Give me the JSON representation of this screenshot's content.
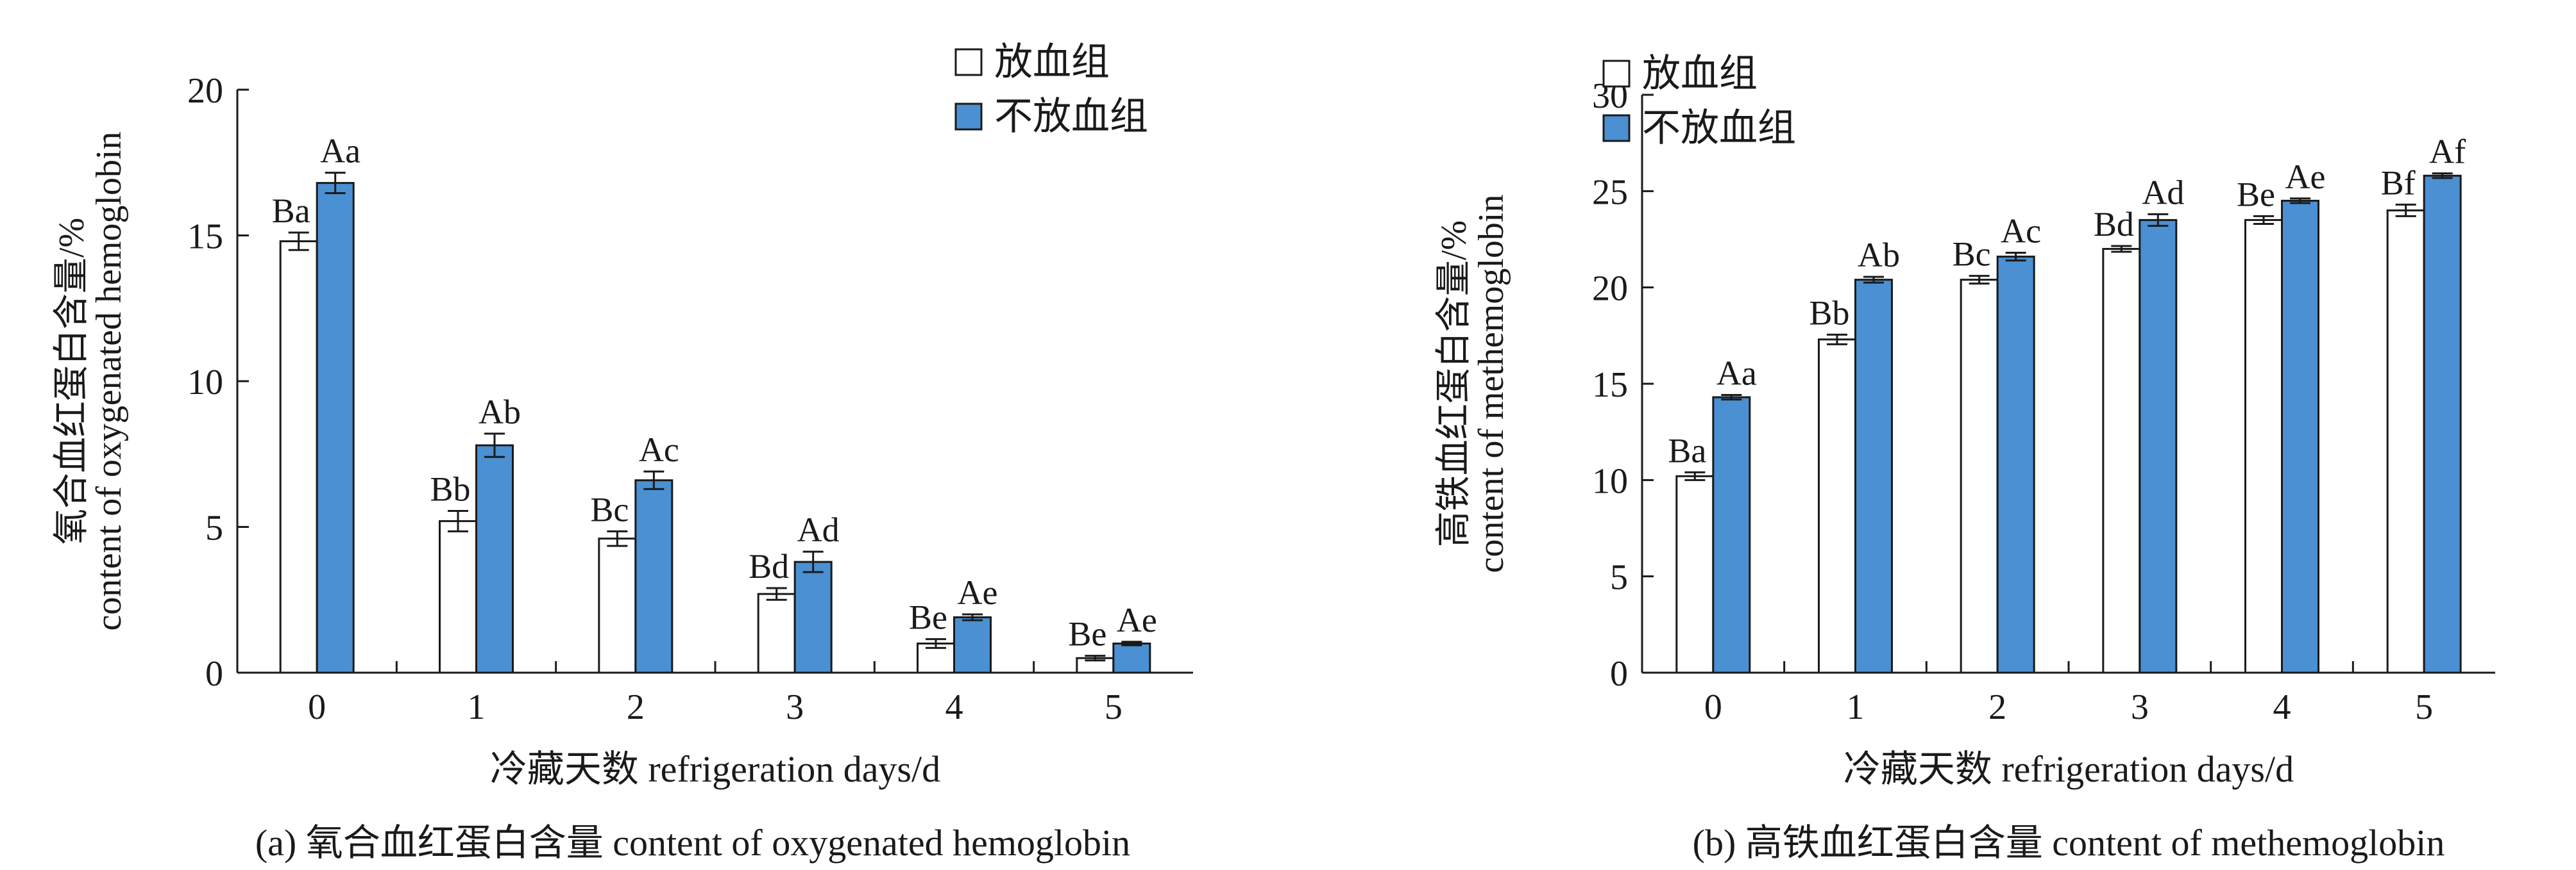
{
  "colors": {
    "series_1": "#ffffff",
    "series_2": "#4a90d2",
    "stroke": "#1a1a1a"
  },
  "chart_data": [
    {
      "type": "bar",
      "caption": "(a) 氧合血红蛋白含量 content of oxygenated hemoglobin",
      "xlabel": "冷藏天数 refrigeration days/d",
      "ylabel_cn": "氧合血红蛋白含量/%",
      "ylabel_en": "content of oxygenated hemoglobin",
      "categories": [
        "0",
        "1",
        "2",
        "3",
        "4",
        "5"
      ],
      "ylim": [
        0,
        20
      ],
      "yticks": [
        "0",
        "5",
        "10",
        "15",
        "20"
      ],
      "legend_position": "top-right",
      "series": [
        {
          "name": "放血组",
          "values": [
            14.8,
            5.2,
            4.6,
            2.7,
            1.0,
            0.5
          ],
          "errors": [
            0.3,
            0.35,
            0.25,
            0.2,
            0.15,
            0.08
          ],
          "labels": [
            "Ba",
            "Bb",
            "Bc",
            "Bd",
            "Be",
            "Be"
          ]
        },
        {
          "name": "不放血组",
          "values": [
            16.8,
            7.8,
            6.6,
            3.8,
            1.9,
            1.0
          ],
          "errors": [
            0.35,
            0.4,
            0.3,
            0.35,
            0.1,
            0.06
          ],
          "labels": [
            "Aa",
            "Ab",
            "Ac",
            "Ad",
            "Ae",
            "Ae"
          ]
        }
      ]
    },
    {
      "type": "bar",
      "caption": "(b) 高铁血红蛋白含量 content of methemoglobin",
      "xlabel": "冷藏天数 refrigeration days/d",
      "ylabel_cn": "高铁血红蛋白含量/%",
      "ylabel_en": "content of methemoglobin",
      "categories": [
        "0",
        "1",
        "2",
        "3",
        "4",
        "5"
      ],
      "ylim": [
        0,
        30
      ],
      "yticks": [
        "0",
        "5",
        "10",
        "15",
        "20",
        "25",
        "30"
      ],
      "legend_position": "top-left",
      "series": [
        {
          "name": "放血组",
          "values": [
            10.2,
            17.3,
            20.4,
            22.0,
            23.5,
            24.0
          ],
          "errors": [
            0.2,
            0.25,
            0.2,
            0.15,
            0.2,
            0.3
          ],
          "labels": [
            "Ba",
            "Bb",
            "Bc",
            "Bd",
            "Be",
            "Bf"
          ]
        },
        {
          "name": "不放血组",
          "values": [
            14.3,
            20.4,
            21.6,
            23.5,
            24.5,
            25.8
          ],
          "errors": [
            0.12,
            0.15,
            0.2,
            0.3,
            0.12,
            0.12
          ],
          "labels": [
            "Aa",
            "Ab",
            "Ac",
            "Ad",
            "Ae",
            "Af"
          ]
        }
      ]
    }
  ]
}
